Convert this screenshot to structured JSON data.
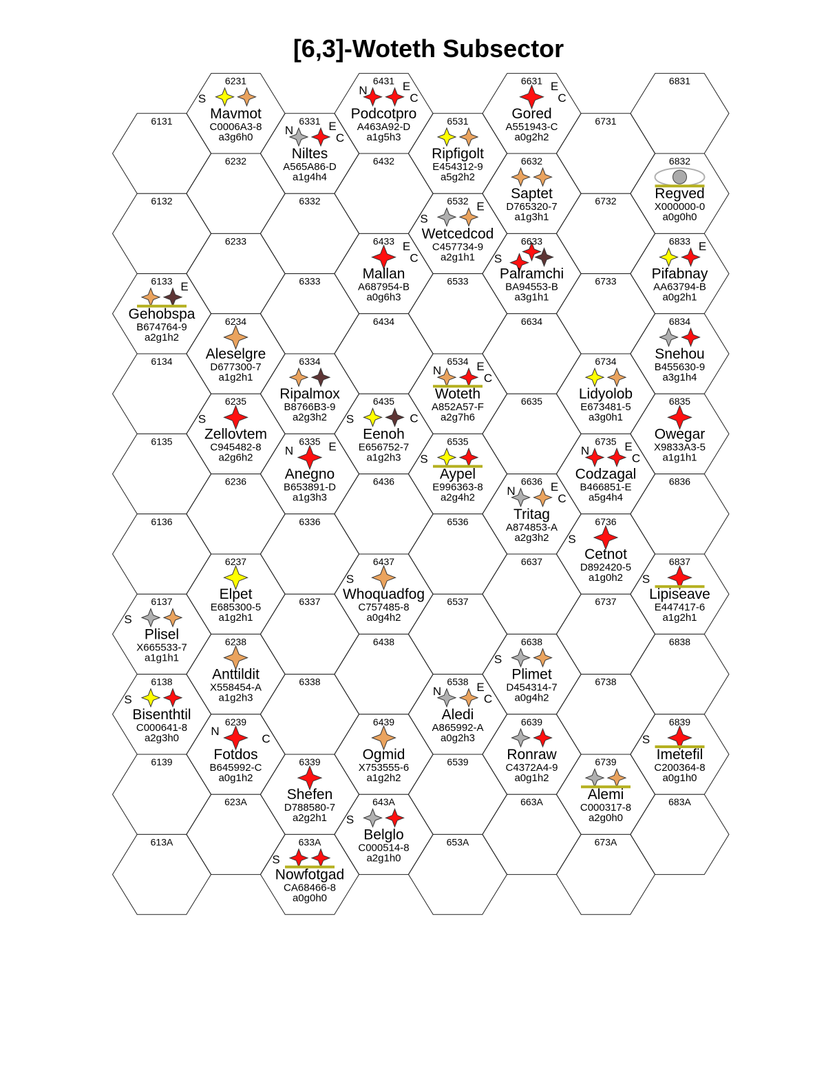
{
  "title": "[6,3]-Woteth Subsector",
  "colors": {
    "yellow": "#ffff00",
    "orange": "#eaa35e",
    "red": "#ff1010",
    "brown": "#5e3535",
    "grey": "#b0b0b0",
    "belt": "#b5b020"
  },
  "hexes": [
    {
      "id": "6131"
    },
    {
      "id": "6132"
    },
    {
      "id": "6133",
      "name": "Gehobspa",
      "uwp": "B674764-9",
      "code": "a2g1h2",
      "stars": [
        "orange",
        "brown"
      ],
      "tl": "",
      "tr": "E",
      "l": "",
      "r": "",
      "belt": true
    },
    {
      "id": "6134"
    },
    {
      "id": "6135"
    },
    {
      "id": "6136"
    },
    {
      "id": "6137",
      "name": "Plisel",
      "uwp": "X665533-7",
      "code": "a1g1h1",
      "stars": [
        "grey",
        "orange"
      ],
      "l": "S"
    },
    {
      "id": "6138",
      "name": "Bisenthtil",
      "uwp": "C000641-8",
      "code": "a2g3h0",
      "stars": [
        "yellow",
        "red"
      ],
      "l": "S"
    },
    {
      "id": "6139"
    },
    {
      "id": "613A"
    },
    {
      "id": "6231",
      "name": "Mavmot",
      "uwp": "C0006A3-8",
      "code": "a3g6h0",
      "stars": [
        "yellow",
        "orange"
      ],
      "l": "S"
    },
    {
      "id": "6232"
    },
    {
      "id": "6233"
    },
    {
      "id": "6234",
      "name": "Aleselgre",
      "uwp": "D677300-7",
      "code": "a1g2h1",
      "stars": [
        "orange"
      ]
    },
    {
      "id": "6235",
      "name": "Zellovtem",
      "uwp": "C945482-8",
      "code": "a2g6h2",
      "stars": [
        "red"
      ],
      "l": "S"
    },
    {
      "id": "6236"
    },
    {
      "id": "6237",
      "name": "Elpet",
      "uwp": "E685300-5",
      "code": "a1g2h1",
      "stars": [
        "yellow"
      ]
    },
    {
      "id": "6238",
      "name": "Anttildit",
      "uwp": "X558454-A",
      "code": "a1g2h3",
      "stars": [
        "orange"
      ]
    },
    {
      "id": "6239",
      "name": "Fotdos",
      "uwp": "B645992-C",
      "code": "a0g1h2",
      "stars": [
        "red"
      ],
      "tl": "N",
      "r": "C"
    },
    {
      "id": "623A"
    },
    {
      "id": "6331",
      "name": "Niltes",
      "uwp": "A565A86-D",
      "code": "a1g4h4",
      "stars": [
        "grey",
        "red"
      ],
      "tl": "N",
      "tr": "E",
      "r": "C"
    },
    {
      "id": "6332"
    },
    {
      "id": "6333"
    },
    {
      "id": "6334",
      "name": "Ripalmox",
      "uwp": "B8766B3-9",
      "code": "a2g3h2",
      "stars": [
        "orange",
        "brown"
      ]
    },
    {
      "id": "6335",
      "name": "Anegno",
      "uwp": "B653891-D",
      "code": "a1g3h3",
      "stars": [
        "red"
      ],
      "tl": "N",
      "tr": "E"
    },
    {
      "id": "6336"
    },
    {
      "id": "6337"
    },
    {
      "id": "6338"
    },
    {
      "id": "6339",
      "name": "Shefen",
      "uwp": "D788580-7",
      "code": "a2g2h1",
      "stars": [
        "red"
      ]
    },
    {
      "id": "633A",
      "name": "Nowfotgad",
      "uwp": "CA68466-8",
      "code": "a0g0h0",
      "stars": [
        "red",
        "red"
      ],
      "l": "S",
      "belt": true
    },
    {
      "id": "6431",
      "name": "Podcotpro",
      "uwp": "A463A92-D",
      "code": "a1g5h3",
      "stars": [
        "red",
        "red"
      ],
      "tl": "N",
      "tr": "E",
      "r": "C"
    },
    {
      "id": "6432"
    },
    {
      "id": "6433",
      "name": "Mallan",
      "uwp": "A687954-B",
      "code": "a0g6h3",
      "stars": [
        "red"
      ],
      "tr": "E",
      "r": "C"
    },
    {
      "id": "6434"
    },
    {
      "id": "6435",
      "name": "Eenoh",
      "uwp": "E656752-7",
      "code": "a1g2h3",
      "stars": [
        "yellow",
        "brown"
      ],
      "l": "S",
      "r": "C"
    },
    {
      "id": "6436"
    },
    {
      "id": "6437",
      "name": "Whoquadfog",
      "uwp": "C757485-8",
      "code": "a0g4h2",
      "stars": [
        "orange"
      ],
      "l": "S"
    },
    {
      "id": "6438"
    },
    {
      "id": "6439",
      "name": "Ogmid",
      "uwp": "X753555-6",
      "code": "a1g2h2",
      "stars": [
        "orange"
      ]
    },
    {
      "id": "643A",
      "name": "Belglo",
      "uwp": "C000514-8",
      "code": "a2g1h0",
      "stars": [
        "grey",
        "red"
      ],
      "l": "S"
    },
    {
      "id": "6531",
      "name": "Ripfigolt",
      "uwp": "E454312-9",
      "code": "a5g2h2",
      "stars": [
        "yellow",
        "orange"
      ]
    },
    {
      "id": "6532",
      "name": "Wetcedcod",
      "uwp": "C457734-9",
      "code": "a2g1h1",
      "stars": [
        "grey",
        "orange"
      ],
      "l": "S",
      "tr": "E"
    },
    {
      "id": "6533"
    },
    {
      "id": "6534",
      "name": "Woteth",
      "uwp": "A852A57-F",
      "code": "a2g7h6",
      "stars": [
        "orange",
        "red"
      ],
      "tl": "N",
      "tr": "E",
      "r": "C",
      "belt": true
    },
    {
      "id": "6535",
      "name": "Aypel",
      "uwp": "E996363-8",
      "code": "a2g4h2",
      "stars": [
        "yellow",
        "red"
      ],
      "l": "S",
      "belt": true
    },
    {
      "id": "6536"
    },
    {
      "id": "6537"
    },
    {
      "id": "6538",
      "name": "Aledi",
      "uwp": "A865992-A",
      "code": "a0g2h3",
      "stars": [
        "grey",
        "orange"
      ],
      "tl": "N",
      "tr": "E",
      "r": "C"
    },
    {
      "id": "6539"
    },
    {
      "id": "653A"
    },
    {
      "id": "6631",
      "name": "Gored",
      "uwp": "A551943-C",
      "code": "a0g2h2",
      "stars": [
        "red"
      ],
      "tr": "E",
      "r": "C"
    },
    {
      "id": "6632",
      "name": "Saptet",
      "uwp": "D765320-7",
      "code": "a1g3h1",
      "stars": [
        "orange",
        "orange"
      ]
    },
    {
      "id": "6633",
      "name": "Palramchi",
      "uwp": "BA94553-B",
      "code": "a3g1h1",
      "stars": [
        "red",
        "red",
        "brown"
      ],
      "l": "S"
    },
    {
      "id": "6634"
    },
    {
      "id": "6635"
    },
    {
      "id": "6636",
      "name": "Tritag",
      "uwp": "A874853-A",
      "code": "a2g3h2",
      "stars": [
        "grey",
        "orange"
      ],
      "tl": "N",
      "tr": "E",
      "r": "C"
    },
    {
      "id": "6637"
    },
    {
      "id": "6638",
      "name": "Plimet",
      "uwp": "D454314-7",
      "code": "a0g4h2",
      "stars": [
        "grey",
        "orange"
      ],
      "l": "S"
    },
    {
      "id": "6639",
      "name": "Ronraw",
      "uwp": "C4372A4-9",
      "code": "a0g1h2",
      "stars": [
        "grey",
        "red"
      ]
    },
    {
      "id": "663A"
    },
    {
      "id": "6731"
    },
    {
      "id": "6732"
    },
    {
      "id": "6733"
    },
    {
      "id": "6734",
      "name": "Lidyolob",
      "uwp": "E673481-5",
      "code": "a3g0h1",
      "stars": [
        "yellow",
        "orange"
      ]
    },
    {
      "id": "6735",
      "name": "Codzagal",
      "uwp": "B466851-E",
      "code": "a5g4h4",
      "stars": [
        "red",
        "red"
      ],
      "tl": "N",
      "tr": "E",
      "r": "C"
    },
    {
      "id": "6736",
      "name": "Cetnot",
      "uwp": "D892420-5",
      "code": "a1g0h2",
      "stars": [
        "red"
      ],
      "l": "S"
    },
    {
      "id": "6737"
    },
    {
      "id": "6738"
    },
    {
      "id": "6739",
      "name": "Alemi",
      "uwp": "C000317-8",
      "code": "a2g0h0",
      "stars": [
        "grey",
        "orange"
      ],
      "belt": true
    },
    {
      "id": "673A"
    },
    {
      "id": "6831"
    },
    {
      "id": "6832",
      "name": "Regved",
      "uwp": "X000000-0",
      "code": "a0g0h0",
      "stars": [],
      "nebula": true,
      "belt": true
    },
    {
      "id": "6833",
      "name": "Pifabnay",
      "uwp": "AA63794-B",
      "code": "a0g2h1",
      "stars": [
        "yellow",
        "red"
      ],
      "tr": "E"
    },
    {
      "id": "6834",
      "name": "Snehou",
      "uwp": "B455630-9",
      "code": "a3g1h4",
      "stars": [
        "grey",
        "red"
      ]
    },
    {
      "id": "6835",
      "name": "Owegar",
      "uwp": "X9833A3-5",
      "code": "a1g1h1",
      "stars": [
        "red"
      ]
    },
    {
      "id": "6836"
    },
    {
      "id": "6837",
      "name": "Lipiseave",
      "uwp": "E447417-6",
      "code": "a1g2h1",
      "stars": [
        "red"
      ],
      "l": "S",
      "belt": true
    },
    {
      "id": "6838"
    },
    {
      "id": "6839",
      "name": "Imetefil",
      "uwp": "C200364-8",
      "code": "a0g1h0",
      "stars": [
        "red"
      ],
      "l": "S",
      "belt": true
    },
    {
      "id": "683A"
    }
  ]
}
